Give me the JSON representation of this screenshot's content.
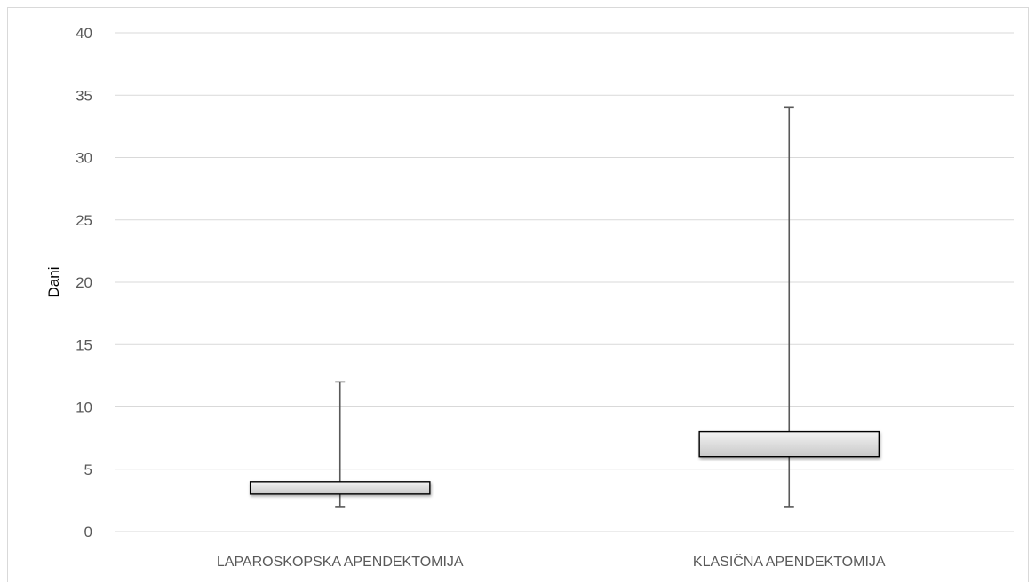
{
  "chart_data": {
    "type": "boxplot",
    "title": "",
    "xlabel": "",
    "ylabel": "Dani",
    "ylim": [
      0,
      40
    ],
    "yticks": [
      0,
      5,
      10,
      15,
      20,
      25,
      30,
      35,
      40
    ],
    "grid": true,
    "legend": "none",
    "categories": [
      "LAPAROSKOPSKA APENDEKTOMIJA",
      "KLASIČNA APENDEKTOMIJA"
    ],
    "boxes": [
      {
        "category": "LAPAROSKOPSKA APENDEKTOMIJA",
        "min": 2,
        "q1": 3,
        "q3": 4,
        "max": 12
      },
      {
        "category": "KLASIČNA APENDEKTOMIJA",
        "min": 2,
        "q1": 6,
        "q3": 8,
        "max": 34
      }
    ],
    "colors": {
      "gridline": "#d9d9d9",
      "whisker": "#595959",
      "box_stroke": "#000000",
      "box_fill_light": "#f2f2f2",
      "box_fill_dark": "#c8c8c8",
      "tick_text": "#595959"
    }
  }
}
